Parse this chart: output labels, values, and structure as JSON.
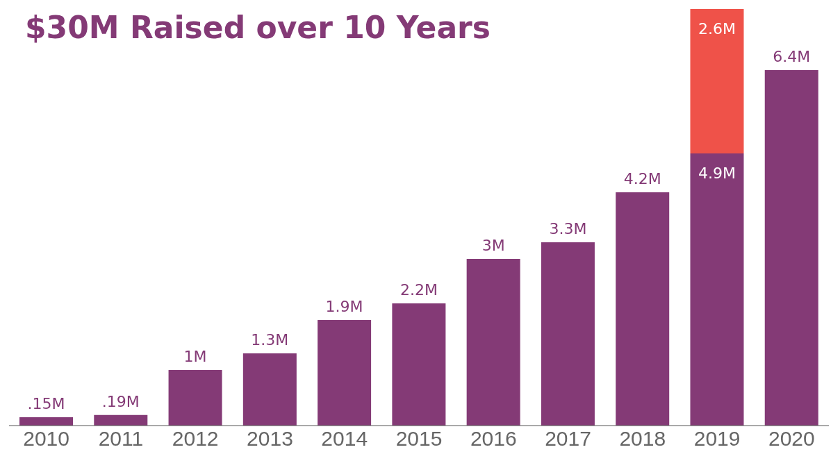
{
  "chart_data": {
    "type": "bar",
    "title": "$30M Raised over 10 Years",
    "categories": [
      "2010",
      "2011",
      "2012",
      "2013",
      "2014",
      "2015",
      "2016",
      "2017",
      "2018",
      "2019",
      "2020"
    ],
    "stacked": true,
    "series": [
      {
        "color": "#843a76",
        "values": [
          0.15,
          0.19,
          1,
          1.3,
          1.9,
          2.2,
          3,
          3.3,
          4.2,
          4.9,
          6.4
        ],
        "value_labels": [
          ".15M",
          ".19M",
          "1M",
          "1.3M",
          "1.9M",
          "2.2M",
          "3M",
          "3.3M",
          "4.2M",
          "4.9M",
          "6.4M"
        ]
      },
      {
        "color": "#ef5249",
        "values": [
          null,
          null,
          null,
          null,
          null,
          null,
          null,
          null,
          null,
          2.6,
          null
        ],
        "value_labels": [
          null,
          null,
          null,
          null,
          null,
          null,
          null,
          null,
          null,
          "2.6M",
          null
        ]
      }
    ]
  }
}
